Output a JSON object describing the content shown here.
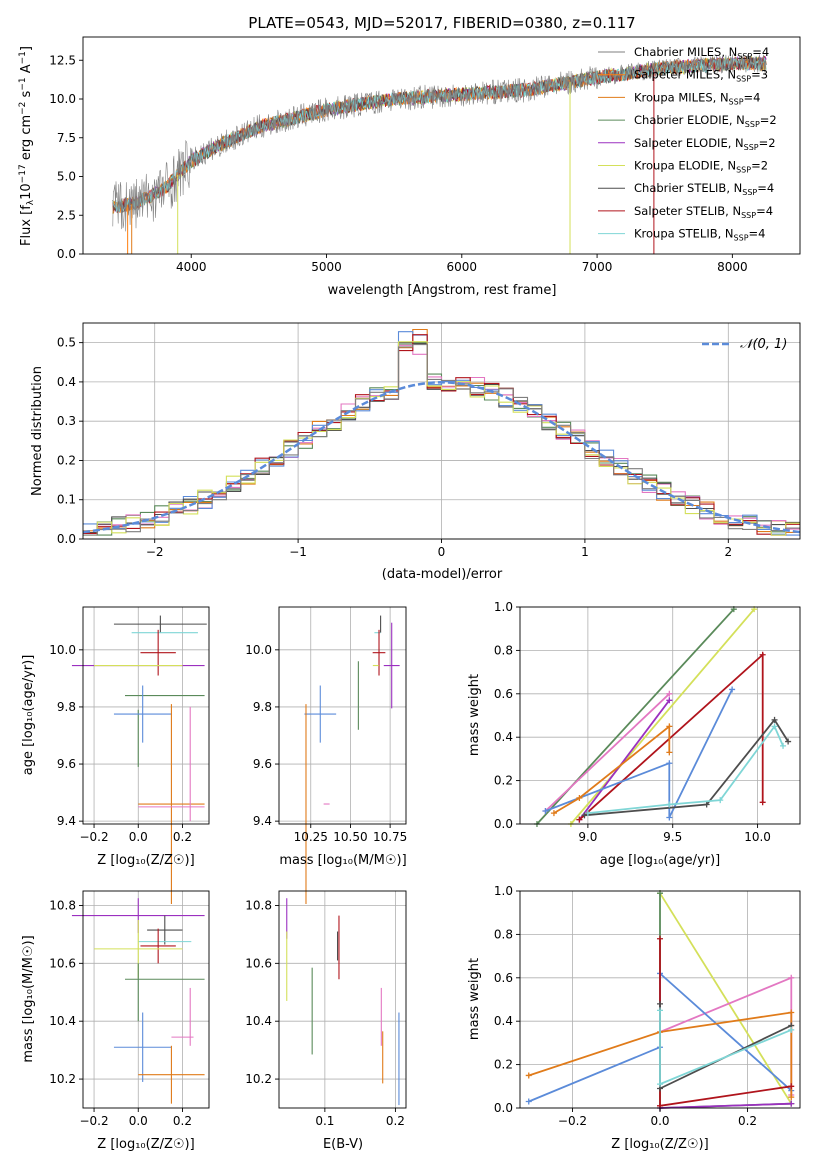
{
  "colors": {
    "chabrier_miles": "#7f7f7f",
    "salpeter_miles": "#ff7f0e",
    "kroupa_miles": "#e07b1a",
    "chabrier_elodie": "#5a8a5a",
    "salpeter_elodie": "#9b30c0",
    "kroupa_elodie": "#d4e05a",
    "chabrier_stelib": "#4d4d4d",
    "salpeter_stelib": "#b0141c",
    "kroupa_stelib": "#7fd6d6",
    "pink": "#e377c2",
    "blue": "#5b8bd9",
    "normal_curve": "#5b8bd9"
  },
  "chart_data": [
    {
      "id": "spectrum",
      "type": "line",
      "title": "PLATE=0543, MJD=52017, FIBERID=0380, z=0.117",
      "xlabel": "wavelength [Angstrom, rest frame]",
      "ylabel_main": "Flux [f",
      "ylabel_sub1": "λ",
      "ylabel_mid": "10",
      "ylabel_sup1": "−17",
      "ylabel_rest": " erg cm",
      "ylabel_sup2": "−2",
      "ylabel_s": " s",
      "ylabel_sup3": "−1",
      "ylabel_a": " A",
      "ylabel_sup4": "−1",
      "ylabel_end": "]",
      "xlim": [
        3200,
        8500
      ],
      "ylim": [
        0,
        14
      ],
      "xticks": [
        4000,
        5000,
        6000,
        7000,
        8000
      ],
      "yticks": [
        0.0,
        2.5,
        5.0,
        7.5,
        10.0,
        12.5
      ],
      "ytick_labels": [
        "0.0",
        "2.5",
        "5.0",
        "7.5",
        "10.0",
        "12.5"
      ],
      "continuum": [
        [
          3400,
          3.0
        ],
        [
          3600,
          3.3
        ],
        [
          3800,
          4.2
        ],
        [
          4000,
          6.0
        ],
        [
          4200,
          7.0
        ],
        [
          4500,
          8.2
        ],
        [
          5000,
          9.3
        ],
        [
          5200,
          9.6
        ],
        [
          5500,
          10.0
        ],
        [
          6000,
          10.3
        ],
        [
          6500,
          10.6
        ],
        [
          7000,
          11.4
        ],
        [
          7500,
          12.0
        ],
        [
          8000,
          12.3
        ],
        [
          8250,
          12.3
        ]
      ],
      "legend": [
        {
          "name": "Chabrier MILES, N",
          "sub": "SSP",
          "tail": "=4",
          "color_key": "chabrier_miles"
        },
        {
          "name": "Salpeter MILES, N",
          "sub": "SSP",
          "tail": "=3",
          "color_key": "salpeter_miles"
        },
        {
          "name": "Kroupa MILES, N",
          "sub": "SSP",
          "tail": "=4",
          "color_key": "kroupa_miles"
        },
        {
          "name": "Chabrier ELODIE, N",
          "sub": "SSP",
          "tail": "=2",
          "color_key": "chabrier_elodie"
        },
        {
          "name": "Salpeter ELODIE, N",
          "sub": "SSP",
          "tail": "=2",
          "color_key": "salpeter_elodie"
        },
        {
          "name": "Kroupa ELODIE, N",
          "sub": "SSP",
          "tail": "=2",
          "color_key": "kroupa_elodie"
        },
        {
          "name": "Chabrier STELIB, N",
          "sub": "SSP",
          "tail": "=4",
          "color_key": "chabrier_stelib"
        },
        {
          "name": "Salpeter STELIB, N",
          "sub": "SSP",
          "tail": "=4",
          "color_key": "salpeter_stelib"
        },
        {
          "name": "Kroupa STELIB, N",
          "sub": "SSP",
          "tail": "=4",
          "color_key": "kroupa_stelib"
        }
      ]
    },
    {
      "id": "residuals",
      "type": "bar",
      "xlabel": "(data-model)/error",
      "ylabel": "Normed distribution",
      "xlim": [
        -2.5,
        2.5
      ],
      "ylim": [
        0,
        0.55
      ],
      "xticks": [
        -2,
        -1,
        0,
        1,
        2
      ],
      "xtick_labels": [
        "−2",
        "−1",
        "0",
        "1",
        "2"
      ],
      "yticks": [
        0.0,
        0.1,
        0.2,
        0.3,
        0.4,
        0.5
      ],
      "ytick_labels": [
        "0.0",
        "0.1",
        "0.2",
        "0.3",
        "0.4",
        "0.5"
      ],
      "legend_label": "𝒩(0, 1)",
      "bin_width": 0.1,
      "reference_curve": "gaussian mean 0 sigma 1"
    },
    {
      "id": "age_vs_Z",
      "type": "scatter",
      "xlabel": "Z [log₁₀(Z/Z☉)]",
      "ylabel": "age  [log₁₀(age/yr)]",
      "xlim": [
        -0.25,
        0.32
      ],
      "ylim": [
        9.39,
        10.15
      ],
      "xticks": [
        -0.2,
        0.0,
        0.2
      ],
      "xtick_labels": [
        "−0.2",
        "0.0",
        "0.2"
      ],
      "yticks": [
        9.4,
        9.6,
        9.8,
        10.0
      ],
      "ytick_labels": [
        "9.4",
        "9.6",
        "9.8",
        "10.0"
      ],
      "points": [
        {
          "x": 0.1,
          "xerr": 0.21,
          "y": 10.09,
          "yerr": 0.03,
          "color_key": "chabrier_stelib"
        },
        {
          "x": 0.12,
          "xerr": 0.15,
          "y": 10.06,
          "yerr": 0.0,
          "color_key": "kroupa_stelib"
        },
        {
          "x": 0.09,
          "xerr": 0.08,
          "y": 9.99,
          "yerr": 0.08,
          "color_key": "salpeter_stelib"
        },
        {
          "x": 0.0,
          "xerr": 0.3,
          "y": 9.945,
          "yerr": 0.0,
          "color_key": "salpeter_elodie"
        },
        {
          "x": 0.0,
          "xerr": 0.2,
          "y": 9.945,
          "yerr": 0.0,
          "color_key": "kroupa_elodie"
        },
        {
          "x": 0.12,
          "xerr": 0.18,
          "y": 9.84,
          "yerr": 0.0,
          "color_key": "chabrier_elodie"
        },
        {
          "x": 0.0,
          "xerr": 0.0,
          "y": 9.69,
          "yerr": 0.1,
          "color_key": "chabrier_elodie"
        },
        {
          "x": 0.02,
          "xerr": 0.13,
          "y": 9.775,
          "yerr": 0.1,
          "color_key": "blue"
        },
        {
          "x": 0.15,
          "xerr": 0.15,
          "y": 9.46,
          "yerr": 0.35,
          "color_key": "kroupa_miles"
        },
        {
          "x": 0.15,
          "xerr": 0.15,
          "y": 9.45,
          "yerr": 0.0,
          "color_key": "pink"
        },
        {
          "x": 0.235,
          "xerr": 0.0,
          "y": 9.6,
          "yerr": 0.2,
          "color_key": "pink"
        }
      ]
    },
    {
      "id": "age_vs_mass",
      "type": "scatter",
      "xlabel": "mass [log₁₀(M/M☉)]",
      "xlim": [
        10.05,
        10.85
      ],
      "ylim": [
        9.39,
        10.15
      ],
      "xticks": [
        10.25,
        10.5,
        10.75
      ],
      "xtick_labels": [
        "10.25",
        "10.50",
        "10.75"
      ],
      "yticks": [
        9.4,
        9.6,
        9.8,
        10.0
      ],
      "ytick_labels": [
        "9.4",
        "9.6",
        "9.8",
        "10.0"
      ],
      "points": [
        {
          "x": 10.69,
          "xerr": 0.0,
          "y": 10.09,
          "yerr": 0.03,
          "color_key": "chabrier_stelib"
        },
        {
          "x": 10.67,
          "xerr": 0.0,
          "y": 10.06,
          "yerr": 0.0,
          "color_key": "kroupa_stelib"
        },
        {
          "x": 10.68,
          "xerr": 0.04,
          "y": 9.99,
          "yerr": 0.08,
          "color_key": "salpeter_stelib"
        },
        {
          "x": 10.76,
          "xerr": 0.05,
          "y": 9.945,
          "yerr": 0.15,
          "color_key": "salpeter_elodie"
        },
        {
          "x": 10.66,
          "xerr": 0.0,
          "y": 9.945,
          "yerr": 0.0,
          "color_key": "kroupa_elodie"
        },
        {
          "x": 10.55,
          "xerr": 0.0,
          "y": 9.84,
          "yerr": 0.12,
          "color_key": "chabrier_elodie"
        },
        {
          "x": 10.31,
          "xerr": 0.1,
          "y": 9.775,
          "yerr": 0.1,
          "color_key": "blue"
        },
        {
          "x": 10.22,
          "xerr": 0.0,
          "y": 9.46,
          "yerr": 0.35,
          "color_key": "kroupa_miles"
        },
        {
          "x": 10.35,
          "xerr": 0.0,
          "y": 9.46,
          "yerr": 0.0,
          "color_key": "pink"
        }
      ]
    },
    {
      "id": "weight_vs_age",
      "type": "line",
      "xlabel": "age  [log₁₀(age/yr)]",
      "ylabel": "mass weight",
      "xlim": [
        8.6,
        10.25
      ],
      "ylim": [
        0,
        1
      ],
      "xticks": [
        9.0,
        9.5,
        10.0
      ],
      "xtick_labels": [
        "9.0",
        "9.5",
        "10.0"
      ],
      "yticks": [
        0.0,
        0.2,
        0.4,
        0.6,
        0.8,
        1.0
      ],
      "ytick_labels": [
        "0.0",
        "0.2",
        "0.4",
        "0.6",
        "0.8",
        "1.0"
      ]
    },
    {
      "id": "mass_vs_Z",
      "type": "scatter",
      "xlabel": "Z [log₁₀(Z/Z☉)]",
      "ylabel": "mass [log₁₀(M/M☉)]",
      "xlim": [
        -0.25,
        0.32
      ],
      "ylim": [
        10.1,
        10.85
      ],
      "xticks": [
        -0.2,
        0.0,
        0.2
      ],
      "xtick_labels": [
        "−0.2",
        "0.0",
        "0.2"
      ],
      "yticks": [
        10.2,
        10.4,
        10.6,
        10.8
      ],
      "ytick_labels": [
        "10.2",
        "10.4",
        "10.6",
        "10.8"
      ]
    },
    {
      "id": "mass_vs_ebv",
      "type": "scatter",
      "xlabel": "E(B-V)",
      "xlim": [
        0.035,
        0.215
      ],
      "ylim": [
        10.1,
        10.85
      ],
      "xticks": [
        0.1,
        0.2
      ],
      "xtick_labels": [
        "0.1",
        "0.2"
      ],
      "yticks": [
        10.2,
        10.4,
        10.6,
        10.8
      ],
      "ytick_labels": [
        "10.2",
        "10.4",
        "10.6",
        "10.8"
      ]
    },
    {
      "id": "weight_vs_Z",
      "type": "line",
      "xlabel": "Z [log₁₀(Z/Z☉)]",
      "ylabel": "mass weight",
      "xlim": [
        -0.32,
        0.32
      ],
      "ylim": [
        0,
        1
      ],
      "xticks": [
        -0.2,
        0.0,
        0.2
      ],
      "xtick_labels": [
        "−0.2",
        "0.0",
        "0.2"
      ],
      "yticks": [
        0.0,
        0.2,
        0.4,
        0.6,
        0.8,
        1.0
      ],
      "ytick_labels": [
        "0.0",
        "0.2",
        "0.4",
        "0.6",
        "0.8",
        "1.0"
      ]
    }
  ]
}
